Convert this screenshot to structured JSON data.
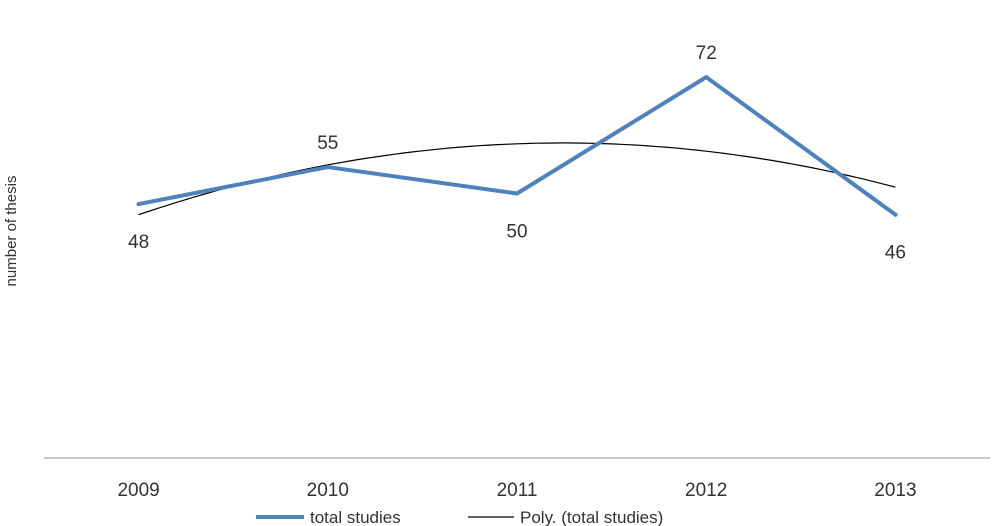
{
  "chart_data": {
    "type": "line",
    "title": "",
    "xlabel": "",
    "ylabel": "number of thesis",
    "categories": [
      "2009",
      "2010",
      "2011",
      "2012",
      "2013"
    ],
    "series": [
      {
        "name": "total studies",
        "values": [
          48,
          55,
          50,
          72,
          46
        ],
        "color": "#4f81bd",
        "data_labels": [
          "48",
          "55",
          "50",
          "72",
          "46"
        ]
      },
      {
        "name": "Poly. (total studies)",
        "trendline": "polynomial",
        "values": [
          46.0,
          55.4,
          59.4,
          58.0,
          51.2
        ],
        "color": "#000000"
      }
    ],
    "ylim": [
      0,
      85
    ],
    "grid": false,
    "legend": "bottom"
  }
}
